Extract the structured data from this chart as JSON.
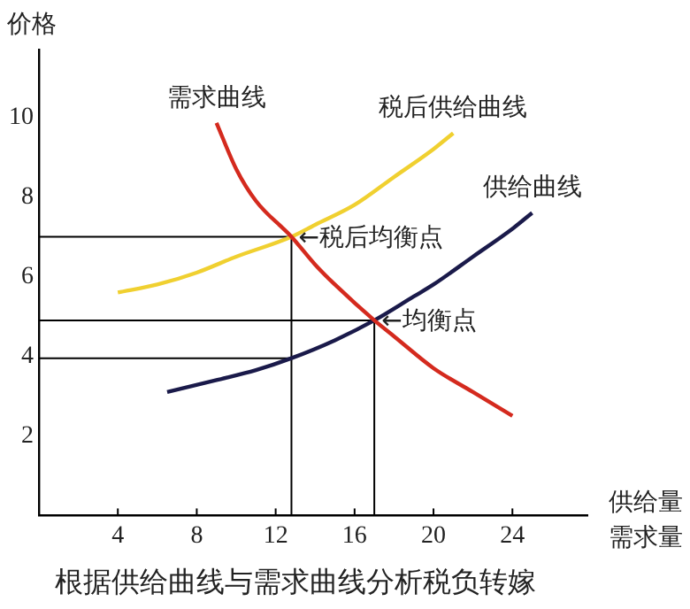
{
  "chart_data": {
    "type": "line",
    "title": "根据供给曲线与需求曲线分析税负转嫁",
    "xlabel": "供给量需求量",
    "ylabel": "价格",
    "xlim": [
      0,
      27.8
    ],
    "ylim": [
      0,
      11.7
    ],
    "xticks": [
      4,
      8,
      12,
      16,
      20,
      24
    ],
    "yticks": [
      2,
      4,
      6,
      8,
      10
    ],
    "grid": false,
    "legend": false,
    "marker": "none",
    "line_style": "solid",
    "series": [
      {
        "name": "需求曲线",
        "color": "#d42a1e",
        "x": [
          9,
          10,
          11,
          12.8,
          14,
          15,
          17,
          18,
          20,
          22,
          24
        ],
        "values": [
          9.86,
          8.7,
          7.9,
          7,
          6.3,
          5.8,
          4.9,
          4.5,
          3.7,
          3.1,
          2.5
        ]
      },
      {
        "name": "税后供给曲线",
        "color": "#f0d030",
        "x": [
          4,
          6,
          8,
          10,
          12.8,
          14,
          16,
          18,
          20,
          21
        ],
        "values": [
          5.6,
          5.8,
          6.1,
          6.5,
          7,
          7.3,
          7.8,
          8.5,
          9.2,
          9.6
        ]
      },
      {
        "name": "供给曲线",
        "color": "#1a1a4a",
        "x": [
          6.5,
          9,
          11,
          12.8,
          15,
          17,
          19,
          20,
          22,
          24,
          25
        ],
        "values": [
          3.1,
          3.4,
          3.65,
          3.95,
          4.4,
          4.9,
          5.5,
          5.8,
          6.5,
          7.2,
          7.6
        ]
      },
      {
        "color": "#000000",
        "x": [
          0,
          12.8,
          12.8
        ],
        "values": [
          7,
          7,
          0
        ]
      },
      {
        "color": "#000000",
        "x": [
          0,
          17,
          17
        ],
        "values": [
          4.9,
          4.9,
          0
        ]
      },
      {
        "color": "#000000",
        "x": [
          0,
          12.8
        ],
        "values": [
          3.95,
          3.95
        ]
      }
    ],
    "annotations": [
      {
        "text": "←税后均衡点",
        "x": 12.8,
        "y": 7
      },
      {
        "text": "←均衡点",
        "x": 17,
        "y": 4.9
      }
    ]
  }
}
